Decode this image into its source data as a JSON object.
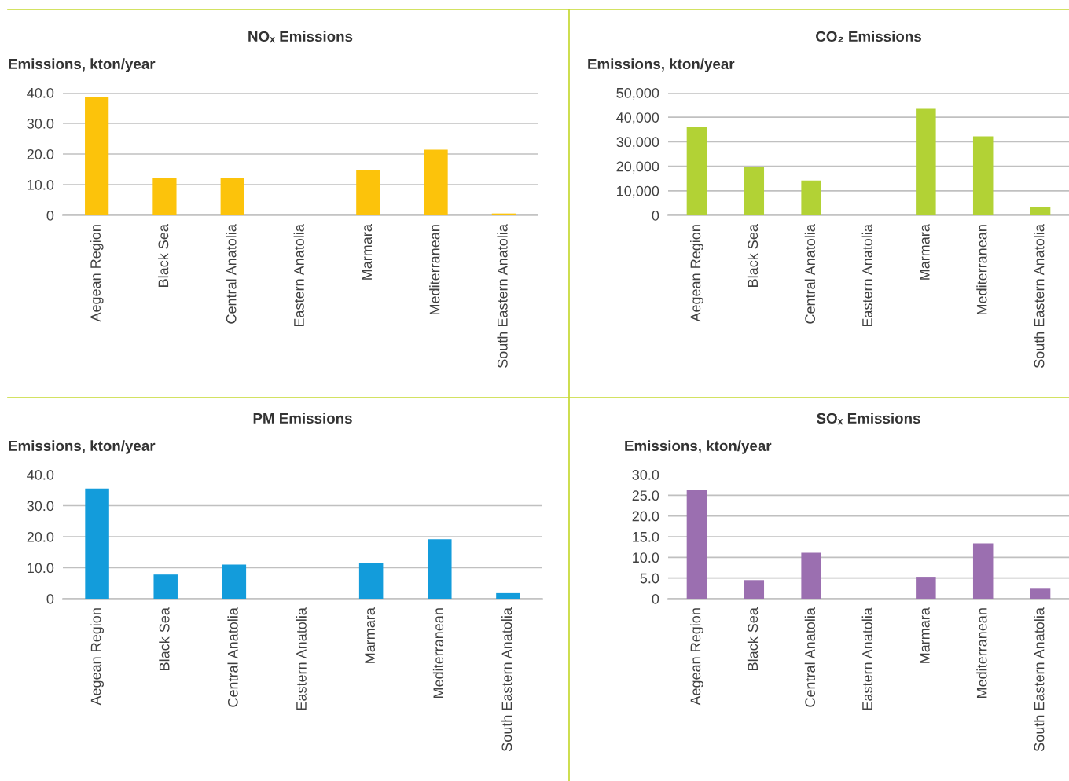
{
  "chart_data": [
    {
      "type": "bar",
      "title": "NOₓ Emissions",
      "ylabel": "Emissions, kton/year",
      "categories": [
        "Aegean Region",
        "Black Sea",
        "Central Anatolia",
        "Eastern Anatolia",
        "Marmara",
        "Mediterranean",
        "South Eastern Anatolia"
      ],
      "values": [
        38.5,
        12.1,
        12.1,
        null,
        14.6,
        21.4,
        0.6
      ],
      "color": "#fcc30b",
      "ylim": [
        0,
        40
      ],
      "yticks": [
        {
          "value": 0,
          "label": "0"
        },
        {
          "value": 10,
          "label": "10.0"
        },
        {
          "value": 20,
          "label": "20.0"
        },
        {
          "value": 30,
          "label": "30.0"
        },
        {
          "value": 40,
          "label": "40.0"
        }
      ],
      "grid": "y",
      "legend": false
    },
    {
      "type": "bar",
      "title": "CO₂ Emissions",
      "ylabel": "Emissions, kton/year",
      "categories": [
        "Aegean Region",
        "Black Sea",
        "Central Anatolia",
        "Eastern Anatolia",
        "Marmara",
        "Mediterranean",
        "South Eastern Anatolia"
      ],
      "values": [
        36000,
        19800,
        14200,
        null,
        43400,
        32200,
        3300
      ],
      "color": "#b2d235",
      "ylim": [
        0,
        50000
      ],
      "yticks": [
        0,
        {
          "value": 10000,
          "label": "10,000"
        },
        {
          "value": 20000,
          "label": "20,000"
        },
        {
          "value": 30000,
          "label": "30,000"
        },
        {
          "value": 40000,
          "label": "40,000"
        },
        {
          "value": 50000,
          "label": "50,000"
        }
      ],
      "grid": "y",
      "legend": false
    },
    {
      "type": "bar",
      "title": "PM Emissions",
      "ylabel": "Emissions, kton/year",
      "categories": [
        "Aegean Region",
        "Black Sea",
        "Central Anatolia",
        "Eastern Anatolia",
        "Marmara",
        "Mediterranean",
        "South Eastern Anatolia"
      ],
      "values": [
        35.5,
        7.8,
        11.0,
        null,
        11.6,
        19.2,
        1.8
      ],
      "color": "#139cdb",
      "ylim": [
        0,
        40
      ],
      "yticks": [
        {
          "value": 0,
          "label": "0"
        },
        {
          "value": 10,
          "label": "10.0"
        },
        {
          "value": 20,
          "label": "20.0"
        },
        {
          "value": 30,
          "label": "30.0"
        },
        {
          "value": 40,
          "label": "40.0"
        }
      ],
      "grid": "y",
      "legend": false
    },
    {
      "type": "bar",
      "title": "SOₓ Emissions",
      "ylabel": "Emissions, kton/year",
      "categories": [
        "Aegean Region",
        "Black Sea",
        "Central Anatolia",
        "Eastern Anatolia",
        "Marmara",
        "Mediterranean",
        "South Eastern Anatolia"
      ],
      "values": [
        26.4,
        4.5,
        11.1,
        null,
        5.3,
        13.4,
        2.6
      ],
      "color": "#9b6fb0",
      "ylim": [
        0,
        30
      ],
      "yticks": [
        {
          "value": 0,
          "label": "0"
        },
        {
          "value": 5,
          "label": "5.0"
        },
        {
          "value": 10,
          "label": "10.0"
        },
        {
          "value": 15,
          "label": "15.0"
        },
        {
          "value": 20,
          "label": "20.0"
        },
        {
          "value": 25,
          "label": "25.0"
        },
        {
          "value": 30,
          "label": "30.0"
        }
      ],
      "grid": "y",
      "legend": false
    }
  ]
}
